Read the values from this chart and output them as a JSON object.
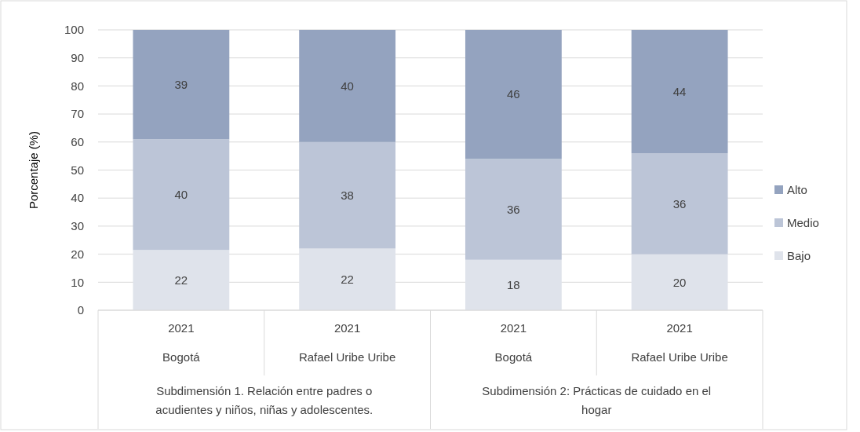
{
  "chart_data": {
    "type": "bar",
    "stacked": true,
    "ylabel": "Porcentaje (%)",
    "categories": [
      "2021\nBogotá",
      "2021\nRafael Uribe Uribe",
      "2021\nBogotá",
      "2021\nRafael Uribe Uribe"
    ],
    "series": [
      {
        "name": "Bajo",
        "color": "#dfe3eb",
        "values": [
          21.5,
          22,
          18,
          20
        ],
        "value_labels": [
          "22",
          "22",
          "18",
          "20"
        ]
      },
      {
        "name": "Medio",
        "color": "#bcc5d7",
        "values": [
          39.5,
          38,
          36,
          36
        ],
        "value_labels": [
          "40",
          "38",
          "36",
          "36"
        ]
      },
      {
        "name": "Alto",
        "color": "#94a3bf",
        "values": [
          39,
          40,
          46,
          44
        ],
        "value_labels": [
          "39",
          "40",
          "46",
          "44"
        ]
      }
    ],
    "ylim": [
      0,
      100
    ],
    "yticks": [
      0,
      10,
      20,
      30,
      40,
      50,
      60,
      70,
      80,
      90,
      100
    ],
    "grid": "y",
    "legend": "right",
    "annotations": [
      "Subdimensión 1. Relación entre padres o\nacudientes y niños, niñas y adolescentes.",
      "Subdimensión 2: Prácticas de cuidado en el\nhogar"
    ]
  }
}
